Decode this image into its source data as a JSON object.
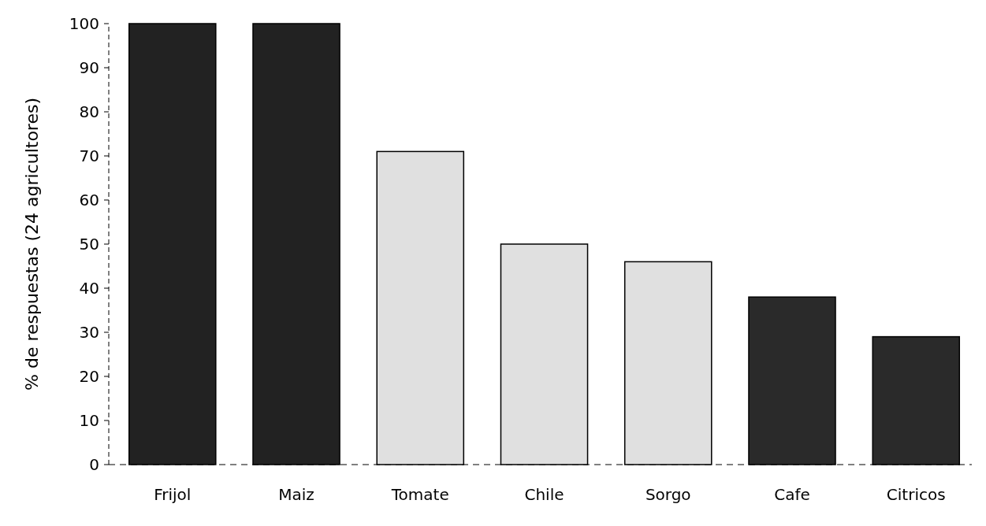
{
  "chart_data": {
    "type": "bar",
    "ylabel": "% de respuestas (24 agricultores)",
    "categories": [
      "Frijol",
      "Maiz",
      "Tomate",
      "Chile",
      "Sorgo",
      "Cafe",
      "Citricos"
    ],
    "values": [
      100,
      100,
      71,
      50,
      46,
      38,
      29
    ],
    "colors": [
      "#222222",
      "#222222",
      "#e0e0e0",
      "#e0e0e0",
      "#e0e0e0",
      "#2a2a2a",
      "#2a2a2a"
    ],
    "ylim": [
      0,
      100
    ],
    "yticks": [
      0,
      10,
      20,
      30,
      40,
      50,
      60,
      70,
      80,
      90,
      100
    ],
    "grid": false
  }
}
